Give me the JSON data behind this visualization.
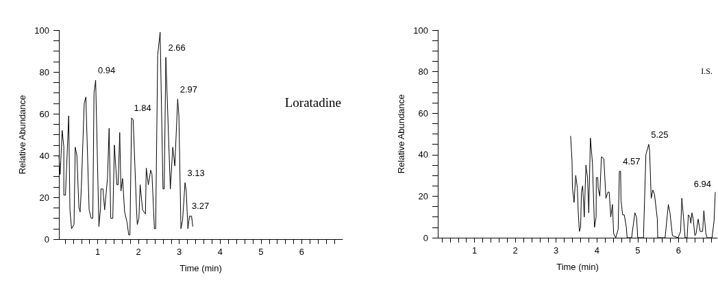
{
  "chart_data": [
    {
      "type": "line",
      "xlabel": "Time (min)",
      "ylabel": "Relative Abundance",
      "xlim": [
        0.05,
        7.0
      ],
      "ylim": [
        0,
        100
      ],
      "xticks": [
        {
          "value": 0.2,
          "label": null
        },
        {
          "value": 0.4,
          "label": null
        },
        {
          "value": 0.6,
          "label": null
        },
        {
          "value": 0.8,
          "label": null
        },
        1,
        {
          "value": 1.2,
          "label": null
        },
        {
          "value": 1.4,
          "label": null
        },
        {
          "value": 1.6,
          "label": null
        },
        {
          "value": 1.8,
          "label": null
        },
        2,
        {
          "value": 2.2,
          "label": null
        },
        {
          "value": 2.4,
          "label": null
        },
        {
          "value": 2.6,
          "label": null
        },
        {
          "value": 2.8,
          "label": null
        },
        3,
        {
          "value": 3.2,
          "label": null
        },
        {
          "value": 3.4,
          "label": null
        },
        {
          "value": 3.6,
          "label": null
        },
        {
          "value": 3.8,
          "label": null
        },
        4,
        {
          "value": 4.2,
          "label": null
        },
        {
          "value": 4.4,
          "label": null
        },
        {
          "value": 4.6,
          "label": null
        },
        {
          "value": 4.8,
          "label": null
        },
        5,
        {
          "value": 5.2,
          "label": null
        },
        {
          "value": 5.4,
          "label": null
        },
        {
          "value": 5.6,
          "label": null
        },
        {
          "value": 5.8,
          "label": null
        },
        6,
        {
          "value": 6.2,
          "label": null
        },
        {
          "value": 6.4,
          "label": null
        },
        {
          "value": 6.6,
          "label": null
        },
        {
          "value": 6.8,
          "label": null
        }
      ],
      "yticks": [
        0,
        {
          "value": 5,
          "label": null
        },
        {
          "value": 10,
          "label": null
        },
        {
          "value": 15,
          "label": null
        },
        20,
        {
          "value": 25,
          "label": null
        },
        {
          "value": 30,
          "label": null
        },
        {
          "value": 35,
          "label": null
        },
        40,
        {
          "value": 45,
          "label": null
        },
        {
          "value": 50,
          "label": null
        },
        {
          "value": 55,
          "label": null
        },
        60,
        {
          "value": 65,
          "label": null
        },
        {
          "value": 70,
          "label": null
        },
        {
          "value": 75,
          "label": null
        },
        80,
        {
          "value": 85,
          "label": null
        },
        {
          "value": 90,
          "label": null
        },
        {
          "value": 95,
          "label": null
        },
        100
      ],
      "marker": "none",
      "line_style": "solid",
      "series": [
        {
          "color": "#000000",
          "x": [
            0.05,
            0.08,
            0.13,
            0.17,
            0.17,
            0.21,
            0.29,
            0.32,
            0.36,
            0.42,
            0.45,
            0.49,
            0.54,
            0.57,
            0.6,
            0.67,
            0.71,
            0.79,
            0.84,
            0.88,
            0.91,
            0.95,
            1.03,
            1.07,
            1.08,
            1.13,
            1.17,
            1.24,
            1.28,
            1.32,
            1.37,
            1.41,
            1.47,
            1.5,
            1.54,
            1.57,
            1.61,
            1.66,
            1.72,
            1.76,
            1.79,
            1.83,
            1.87,
            1.95,
            1.97,
            2.01,
            2.04,
            2.1,
            2.17,
            2.19,
            2.24,
            2.3,
            2.33,
            2.39,
            2.42,
            2.47,
            2.53,
            2.6,
            2.63,
            2.67,
            2.78,
            2.84,
            2.89,
            2.96,
            2.99,
            3.04,
            3.08,
            3.14,
            3.17,
            3.21,
            3.25,
            3.3,
            3.33
          ],
          "values": [
            40,
            31,
            52,
            44,
            21,
            21,
            59,
            14,
            5,
            7,
            44,
            40,
            15,
            13,
            25,
            65,
            68,
            14,
            10,
            10,
            70,
            76,
            6,
            15,
            24,
            24,
            14,
            29,
            53,
            10,
            10,
            45,
            26,
            26,
            51,
            23,
            29,
            13,
            8,
            2,
            2,
            58,
            57,
            15,
            7,
            10,
            26,
            14,
            12,
            34,
            26,
            33,
            31,
            5,
            5,
            88,
            99,
            24,
            24,
            87,
            24,
            44,
            35,
            67,
            59,
            5,
            9,
            27,
            23,
            5,
            11,
            11,
            6
          ]
        }
      ],
      "annotations": [
        {
          "text": "0.94",
          "x": 0.95,
          "y": 76
        },
        {
          "text": "1.84",
          "x": 1.83,
          "y": 58
        },
        {
          "text": "2.66",
          "x": 2.67,
          "y": 87
        },
        {
          "text": "2.97",
          "x": 2.96,
          "y": 67
        },
        {
          "text": "3.13",
          "x": 3.14,
          "y": 27
        },
        {
          "text": "3.27",
          "x": 3.25,
          "y": 11
        },
        "Loratadine"
      ]
    },
    {
      "type": "line",
      "xlabel": "Time (min)",
      "ylabel": "Relative Abundance",
      "xlim": [
        0.1,
        6.95
      ],
      "ylim": [
        0,
        100
      ],
      "xticks": [
        {
          "value": 0.2,
          "label": null
        },
        {
          "value": 0.4,
          "label": null
        },
        {
          "value": 0.6,
          "label": null
        },
        {
          "value": 0.8,
          "label": null
        },
        1,
        {
          "value": 1.2,
          "label": null
        },
        {
          "value": 1.4,
          "label": null
        },
        {
          "value": 1.6,
          "label": null
        },
        {
          "value": 1.8,
          "label": null
        },
        2,
        {
          "value": 2.2,
          "label": null
        },
        {
          "value": 2.4,
          "label": null
        },
        {
          "value": 2.6,
          "label": null
        },
        {
          "value": 2.8,
          "label": null
        },
        3,
        {
          "value": 3.2,
          "label": null
        },
        {
          "value": 3.4,
          "label": null
        },
        {
          "value": 3.6,
          "label": null
        },
        {
          "value": 3.8,
          "label": null
        },
        4,
        {
          "value": 4.2,
          "label": null
        },
        {
          "value": 4.4,
          "label": null
        },
        {
          "value": 4.6,
          "label": null
        },
        {
          "value": 4.8,
          "label": null
        },
        5,
        {
          "value": 5.2,
          "label": null
        },
        {
          "value": 5.4,
          "label": null
        },
        {
          "value": 5.6,
          "label": null
        },
        {
          "value": 5.8,
          "label": null
        },
        6,
        {
          "value": 6.2,
          "label": null
        },
        {
          "value": 6.4,
          "label": null
        },
        {
          "value": 6.6,
          "label": null
        },
        {
          "value": 6.8,
          "label": null
        }
      ],
      "yticks": [
        0,
        {
          "value": 5,
          "label": null
        },
        {
          "value": 10,
          "label": null
        },
        {
          "value": 15,
          "label": null
        },
        20,
        {
          "value": 25,
          "label": null
        },
        {
          "value": 30,
          "label": null
        },
        {
          "value": 35,
          "label": null
        },
        40,
        {
          "value": 45,
          "label": null
        },
        {
          "value": 50,
          "label": null
        },
        {
          "value": 55,
          "label": null
        },
        60,
        {
          "value": 65,
          "label": null
        },
        {
          "value": 70,
          "label": null
        },
        {
          "value": 75,
          "label": null
        },
        80,
        {
          "value": 85,
          "label": null
        },
        {
          "value": 90,
          "label": null
        },
        {
          "value": 95,
          "label": null
        },
        100
      ],
      "marker": "none",
      "line_style": "solid",
      "series": [
        {
          "color": "#000000",
          "x": [
            3.355,
            3.39,
            3.4,
            3.44,
            3.48,
            3.52,
            3.54,
            3.57,
            3.6,
            3.62,
            3.65,
            3.69,
            3.73,
            3.77,
            3.8,
            3.84,
            3.89,
            3.94,
            3.98,
            3.985,
            4.02,
            4.03,
            4.07,
            4.11,
            4.17,
            4.22,
            4.27,
            4.3,
            4.34,
            4.38,
            4.41,
            4.46,
            4.52,
            4.55,
            4.58,
            4.59,
            4.63,
            4.67,
            4.72,
            4.74,
            4.85,
            4.93,
            4.97,
            5.0,
            5.14,
            5.2,
            5.27,
            5.29,
            5.33,
            5.37,
            5.41,
            5.48,
            5.49,
            5.67,
            5.75,
            5.79,
            5.85,
            5.99,
            6.05,
            6.08,
            6.12,
            6.16,
            6.21,
            6.24,
            6.28,
            6.3,
            6.33,
            6.36,
            6.4,
            6.43,
            6.48,
            6.53,
            6.59,
            6.62,
            6.67,
            6.7,
            6.82,
            6.87,
            6.9
          ],
          "values": [
            49,
            37,
            24,
            17,
            30,
            24,
            13,
            3,
            5,
            22,
            25,
            10,
            35,
            29,
            12,
            48,
            36,
            5,
            10,
            29,
            29,
            24,
            20,
            39,
            38,
            19,
            22,
            22,
            10,
            16,
            2,
            0,
            4,
            32,
            32,
            18,
            11,
            11,
            5,
            0,
            0,
            12,
            10,
            0,
            0,
            40,
            45,
            42,
            19,
            23,
            21,
            9,
            0,
            0,
            16,
            12,
            1,
            0,
            3,
            19,
            10,
            0,
            0,
            11,
            10,
            7,
            12,
            9,
            1,
            2,
            9,
            3,
            3,
            13,
            2,
            0,
            0,
            8,
            22
          ]
        }
      ],
      "annotations": [
        {
          "text": "4.57",
          "x": 4.58,
          "y": 32
        },
        {
          "text": "5.25",
          "x": 5.27,
          "y": 45
        },
        {
          "text": "6.94",
          "x": 6.9,
          "y": 22
        },
        "I.S."
      ]
    }
  ]
}
